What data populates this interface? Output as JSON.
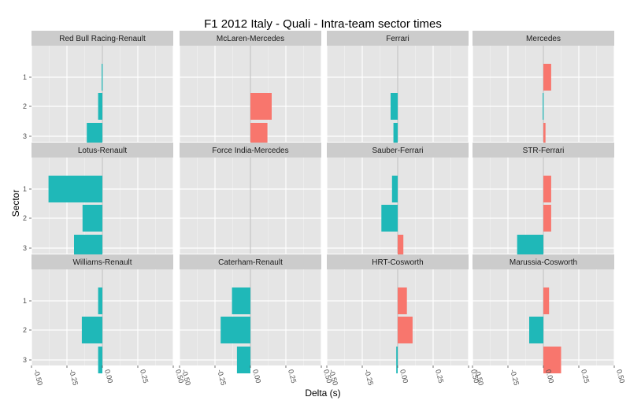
{
  "chart_data": {
    "type": "bar",
    "orientation": "horizontal",
    "title": "F1  2012 Italy - Quali - Intra-team sector times",
    "xlabel": "Delta (s)",
    "ylabel": "Sector",
    "xlim": [
      -0.5,
      0.5
    ],
    "xticks": [
      -0.5,
      -0.25,
      0.0,
      0.25,
      0.5
    ],
    "xtick_labels": [
      "-0.50",
      "-0.25",
      "0.00",
      "0.25",
      "0.50"
    ],
    "categories": [
      "1",
      "2",
      "3"
    ],
    "grid": true,
    "colors": {
      "positive": "#F8766D",
      "negative": "#1FB8B8",
      "panel": "#E5E5E5",
      "strip": "#CCCCCC",
      "zero_line": "#A8A8A8"
    },
    "facets": [
      {
        "name": "Red Bull Racing-Renault",
        "values": [
          -0.005,
          -0.03,
          -0.11
        ]
      },
      {
        "name": "McLaren-Mercedes",
        "values": [
          0.0,
          0.15,
          0.12
        ]
      },
      {
        "name": "Ferrari",
        "values": [
          0.0,
          -0.05,
          -0.03
        ]
      },
      {
        "name": "Mercedes",
        "values": [
          0.055,
          -0.005,
          0.015
        ]
      },
      {
        "name": "Lotus-Renault",
        "values": [
          -0.38,
          -0.14,
          -0.2
        ]
      },
      {
        "name": "Force India-Mercedes",
        "values": [
          0.0,
          0.0,
          0.0
        ]
      },
      {
        "name": "Sauber-Ferrari",
        "values": [
          -0.04,
          -0.115,
          0.04
        ]
      },
      {
        "name": "STR-Ferrari",
        "values": [
          0.055,
          0.055,
          -0.185
        ]
      },
      {
        "name": "Williams-Renault",
        "values": [
          -0.03,
          -0.145,
          -0.03
        ]
      },
      {
        "name": "Caterham-Renault",
        "values": [
          -0.13,
          -0.21,
          -0.095
        ]
      },
      {
        "name": "HRT-Cosworth",
        "values": [
          0.065,
          0.105,
          -0.01
        ]
      },
      {
        "name": "Marussia-Cosworth",
        "values": [
          0.04,
          -0.1,
          0.125
        ]
      }
    ]
  }
}
